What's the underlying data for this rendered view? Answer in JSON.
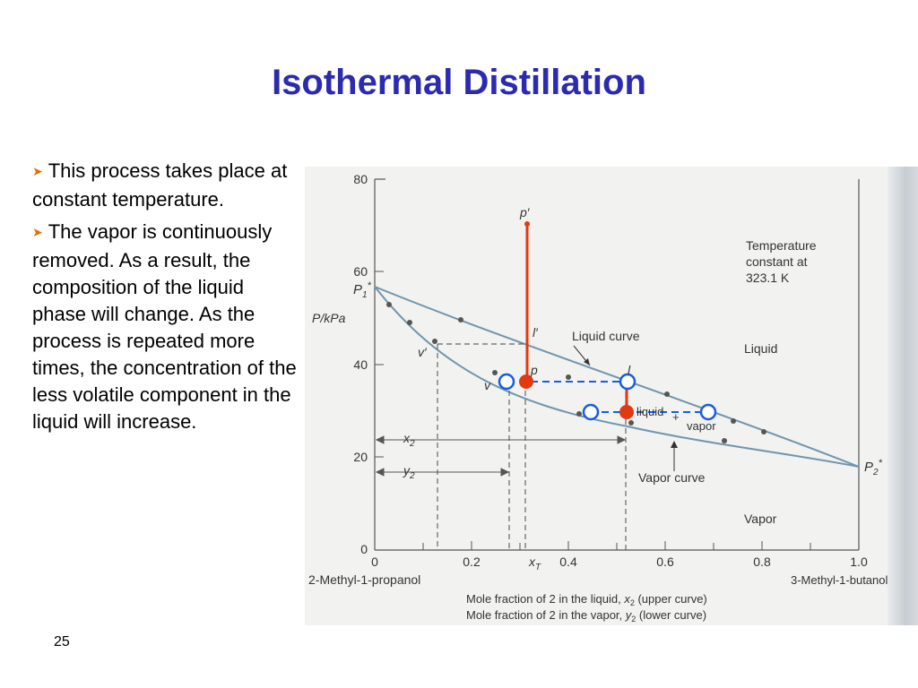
{
  "slide": {
    "title": "Isothermal Distillation",
    "bullets": [
      "This process takes place at constant temperature.",
      "The vapor is continuously removed. As a result, the composition of the liquid phase will change. As the process is repeated more times, the concentration of the less volatile component in the liquid will increase."
    ],
    "page_number": "25"
  },
  "figure": {
    "ylabel": "P/kPa",
    "y_ticks": [
      "0",
      "20",
      "40",
      "60",
      "80"
    ],
    "x_ticks": [
      "0",
      "0.2",
      "0.4",
      "0.6",
      "0.8",
      "1.0"
    ],
    "left_component": "2-Methyl-1-propanol",
    "right_component": "3-Methyl-1-butanol",
    "caption_line1": "Mole fraction of 2 in the liquid, x2 (upper curve)",
    "caption_line2": "Mole fraction of 2 in the vapor, y2 (lower curve)",
    "temperature_note": [
      "Temperature",
      "constant at",
      "323.1 K"
    ],
    "region_liquid": "Liquid",
    "region_vapor": "Vapor",
    "liquid_curve_label": "Liquid curve",
    "vapor_curve_label": "Vapor curve",
    "two_phase_label_1": "liquid",
    "two_phase_label_2": "+",
    "two_phase_label_3": "vapor",
    "point_labels": {
      "p1_star": "P1*",
      "p2_star": "P2*",
      "p_prime": "p′",
      "l_prime": "l′",
      "v_prime": "v′",
      "v": "v",
      "p": "p",
      "l": "l",
      "x2": "x2",
      "y2": "y2",
      "xT": "xT"
    },
    "colors": {
      "curve": "#6f95ad",
      "red_line": "#E03A10",
      "blue_dash": "#1a5ce0",
      "title": "#2B2BB0"
    }
  }
}
